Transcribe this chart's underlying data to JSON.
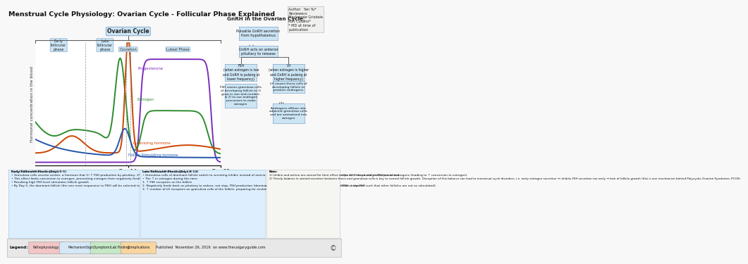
{
  "title": "Menstrual Cycle Physiology: Ovarian Cycle - Follicular Phase Explained",
  "author_text": "Author:  Yan Yu*\nReviewers:\nMackenzie Grisdale\nRon Cusano*\n* MD at time of\npublication",
  "bg_color": "#f8f8f8",
  "legend_bar": [
    {
      "label": "Pathophysiology",
      "color": "#f2c6c6"
    },
    {
      "label": "Mechanism",
      "color": "#d5e8f7"
    },
    {
      "label": "Sign/Symptom/Lab Finding",
      "color": "#c6e8c6"
    },
    {
      "label": "Complications",
      "color": "#f9d5a0"
    }
  ],
  "footer_text": "Published  November 26, 2016  on www.thecalgaryguide.com",
  "gnrh_title": "GnRH in the Ovarian Cycle:",
  "chart_box_color": "#cce5f5",
  "gnrh_box_color": "#cce5f5",
  "hormone_colors": {
    "Progesterone": "#7b2fbe",
    "Estrogen": "#2d8c2d",
    "Luteinizing hormone": "#cc4400",
    "Follicle Stimulating hormone": "#2255aa"
  },
  "early_phase_title": "Early Follicular Phase (Days 0-5)",
  "early_phase_bullets": [
    "Granulosa cells secrete activin, a hormone that 1) ↑ FSH production by pituitary, 2) ↑ FSH receptors on granulosa cells, and 3) ↓ theca cell androgen production.",
    "This effect limits conversion to estrogen, preventing estrogen from negatively feeding back on anterior pituitary which would reduce FSH production.",
    "Resulting high FSH level stimulates follicle growth.",
    "By Day 5, the dominant follicle (the one most responsive to FSH) will be selected to continue growing (mechanism for this “selection” unclear, but this follicle is also the first to switch from activin to inhibin, and that inhibin ↓ the FSH such that other follicles are not as stimulated)."
  ],
  "late_phase_title": "Late Follicular Phase (Days 5-14)",
  "late_phase_bullets": [
    "Granulosa cells of dominant follicle switch to secreting inhibin instead of activin. Inhibin 1) ↓ FSH production by pituitary, and 2) helps LH ↑ theca cell production of androgens (leading to ↑ conversion to estrogen)",
    "The ↑ in estrogen during this time:\n1. ↑ FSH receptors on the follicle\n2. Negatively feeds back on pituitary to reduce, not stop, FSH production (dominant follicle still grows because of greater number of FSH receptors)\n3. ↑ number of LH receptors on granulosa cells of the follicle, preparing for ovulation (see Ovulation Explained slide)"
  ],
  "note_title": "Note:",
  "note_text": "1) Inhibin and activin are named for their effect on the anterior pituitary’s FSH production.\n2) Timely balance in steroid secretion between theca and granulosa cells is key to normal follicle growth. Disruption of this balance can lead to menstrual cycle disorders. i.e. early estrogen secretion → inhibits FSH secretion too early → lack of follicle growth (this is one mechanism behind Polycystic Ovarian Syndrome, PCOS)."
}
